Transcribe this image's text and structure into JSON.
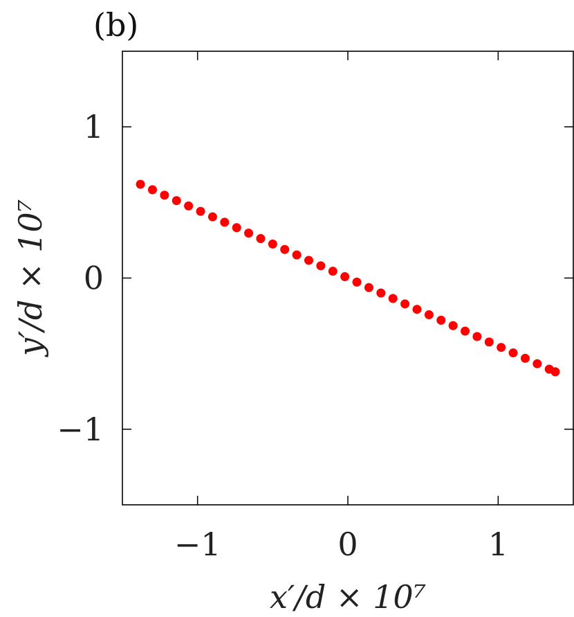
{
  "chart_data": {
    "type": "scatter",
    "panel_label": "(b)",
    "title": "",
    "xlabel": "x′/d × 10⁷",
    "ylabel": "y′/d × 10⁷",
    "xlim": [
      -1.5,
      1.5
    ],
    "ylim": [
      -1.5,
      1.5
    ],
    "xticks": [
      -1,
      0,
      1
    ],
    "yticks": [
      -1,
      0,
      1
    ],
    "xtick_labels": [
      "−1",
      "0",
      "1"
    ],
    "ytick_labels": [
      "−1",
      "0",
      "1"
    ],
    "grid": false,
    "legend": "none",
    "marker_color": "#ff0000",
    "series": [
      {
        "x": [
          -1.38,
          -1.3,
          -1.22,
          -1.14,
          -1.06,
          -0.98,
          -0.9,
          -0.82,
          -0.74,
          -0.66,
          -0.58,
          -0.5,
          -0.42,
          -0.34,
          -0.26,
          -0.18,
          -0.1,
          -0.02,
          0.06,
          0.14,
          0.22,
          0.3,
          0.38,
          0.46,
          0.54,
          0.62,
          0.7,
          0.78,
          0.86,
          0.94,
          1.02,
          1.1,
          1.18,
          1.26,
          1.34,
          1.38
        ],
        "y": [
          0.62,
          0.584,
          0.548,
          0.512,
          0.477,
          0.441,
          0.405,
          0.369,
          0.333,
          0.297,
          0.261,
          0.225,
          0.189,
          0.153,
          0.117,
          0.081,
          0.045,
          0.009,
          -0.027,
          -0.063,
          -0.099,
          -0.135,
          -0.171,
          -0.207,
          -0.243,
          -0.279,
          -0.315,
          -0.351,
          -0.387,
          -0.423,
          -0.459,
          -0.495,
          -0.531,
          -0.567,
          -0.603,
          -0.62
        ]
      }
    ]
  }
}
